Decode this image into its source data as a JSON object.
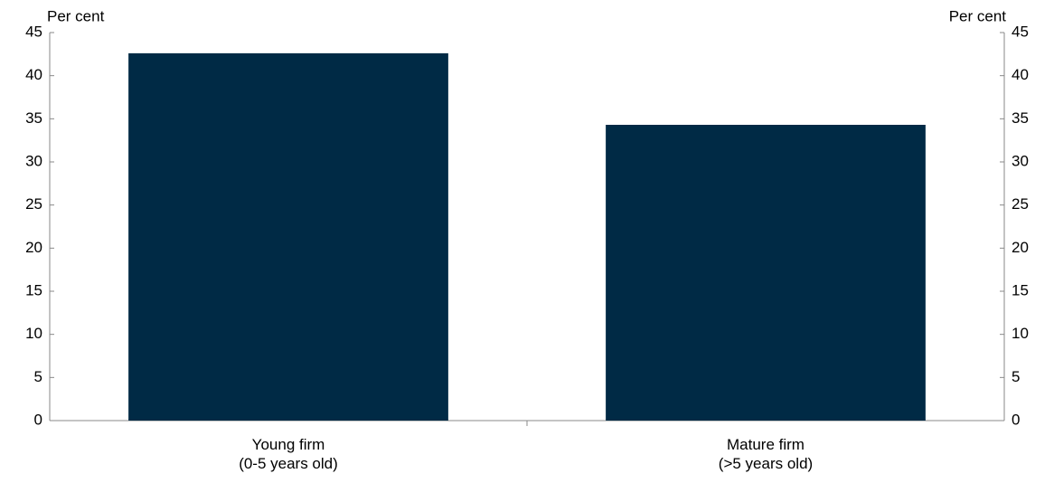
{
  "chart_data": {
    "type": "bar",
    "categories": [
      "Young firm\n(0-5 years old)",
      "Mature firm\n(>5 years old)"
    ],
    "values": [
      42.6,
      34.3
    ],
    "color": "#002a45",
    "ylabel": "Per cent",
    "y2label": "Per cent",
    "ylim": [
      0,
      45
    ],
    "yticks": [
      0,
      5,
      10,
      15,
      20,
      25,
      30,
      35,
      40,
      45
    ],
    "y2lim": [
      0,
      45
    ],
    "y2ticks": [
      0,
      5,
      10,
      15,
      20,
      25,
      30,
      35,
      40,
      45
    ],
    "grid": false
  }
}
